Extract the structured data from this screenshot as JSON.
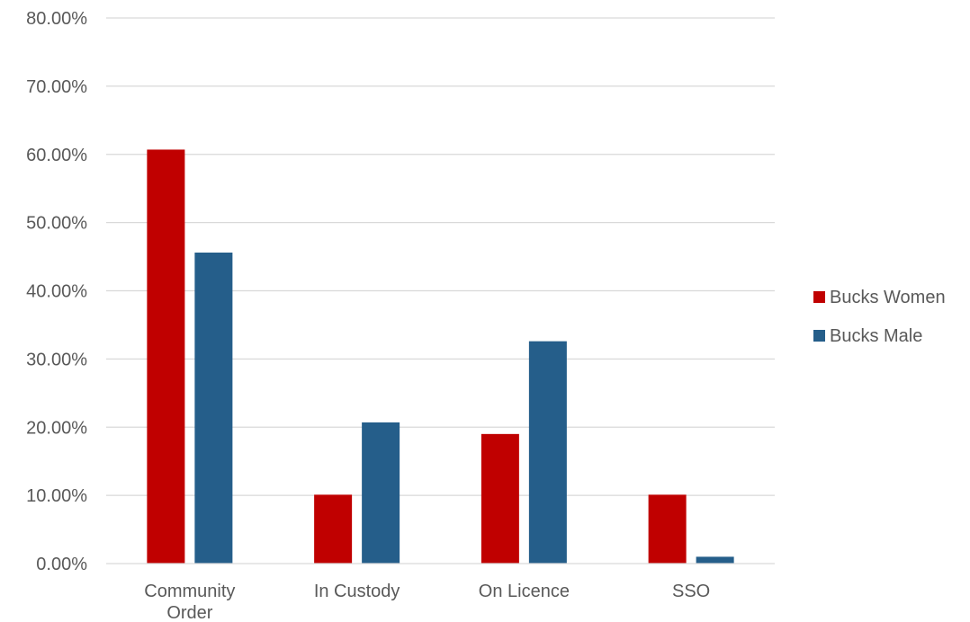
{
  "chart_data": {
    "type": "bar",
    "categories": [
      [
        "Community",
        "Order"
      ],
      [
        "In Custody"
      ],
      [
        "On Licence"
      ],
      [
        "SSO"
      ]
    ],
    "series": [
      {
        "name": "Bucks Women",
        "color": "#c00000",
        "values": [
          60.7,
          10.1,
          19.0,
          10.1
        ]
      },
      {
        "name": "Bucks Male",
        "color": "#255e8a",
        "values": [
          45.6,
          20.7,
          32.6,
          1.0
        ]
      }
    ],
    "yticks": [
      "0.00%",
      "10.00%",
      "20.00%",
      "30.00%",
      "40.00%",
      "50.00%",
      "60.00%",
      "70.00%",
      "80.00%"
    ],
    "ylim": [
      0,
      80
    ],
    "grid": true,
    "legend_position": "right"
  }
}
